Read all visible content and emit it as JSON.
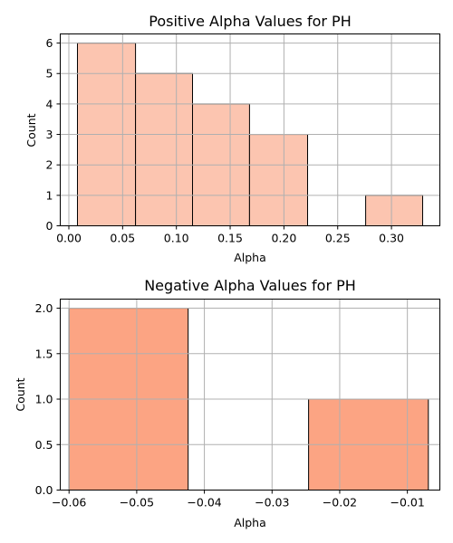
{
  "chart_data": [
    {
      "type": "bar",
      "title": "Positive Alpha Values for PH",
      "xlabel": "Alpha",
      "ylabel": "Count",
      "xlim": [
        -0.008,
        0.345
      ],
      "ylim": [
        0,
        6.3
      ],
      "xticks": [
        "0.00",
        "0.05",
        "0.10",
        "0.15",
        "0.20",
        "0.25",
        "0.30"
      ],
      "yticks": [
        "0",
        "1",
        "2",
        "3",
        "4",
        "5",
        "6"
      ],
      "grid": true,
      "color": "#fcc5b0",
      "bins": [
        {
          "x0": 0.008,
          "x1": 0.062,
          "count": 6
        },
        {
          "x0": 0.062,
          "x1": 0.115,
          "count": 5
        },
        {
          "x0": 0.115,
          "x1": 0.168,
          "count": 4
        },
        {
          "x0": 0.168,
          "x1": 0.222,
          "count": 3
        },
        {
          "x0": 0.222,
          "x1": 0.276,
          "count": 0
        },
        {
          "x0": 0.276,
          "x1": 0.329,
          "count": 1
        }
      ]
    },
    {
      "type": "bar",
      "title": "Negative Alpha Values for PH",
      "xlabel": "Alpha",
      "ylabel": "Count",
      "xlim": [
        -0.0613,
        -0.0052
      ],
      "ylim": [
        0,
        2.1
      ],
      "xticks": [
        "−0.06",
        "−0.05",
        "−0.04",
        "−0.03",
        "−0.02",
        "−0.01"
      ],
      "yticks": [
        "0.0",
        "0.5",
        "1.0",
        "1.5",
        "2.0"
      ],
      "grid": true,
      "color": "#fca483",
      "bins": [
        {
          "x0": -0.06,
          "x1": -0.0424,
          "count": 2
        },
        {
          "x0": -0.0424,
          "x1": -0.0246,
          "count": 0
        },
        {
          "x0": -0.0246,
          "x1": -0.0069,
          "count": 1
        }
      ]
    }
  ]
}
